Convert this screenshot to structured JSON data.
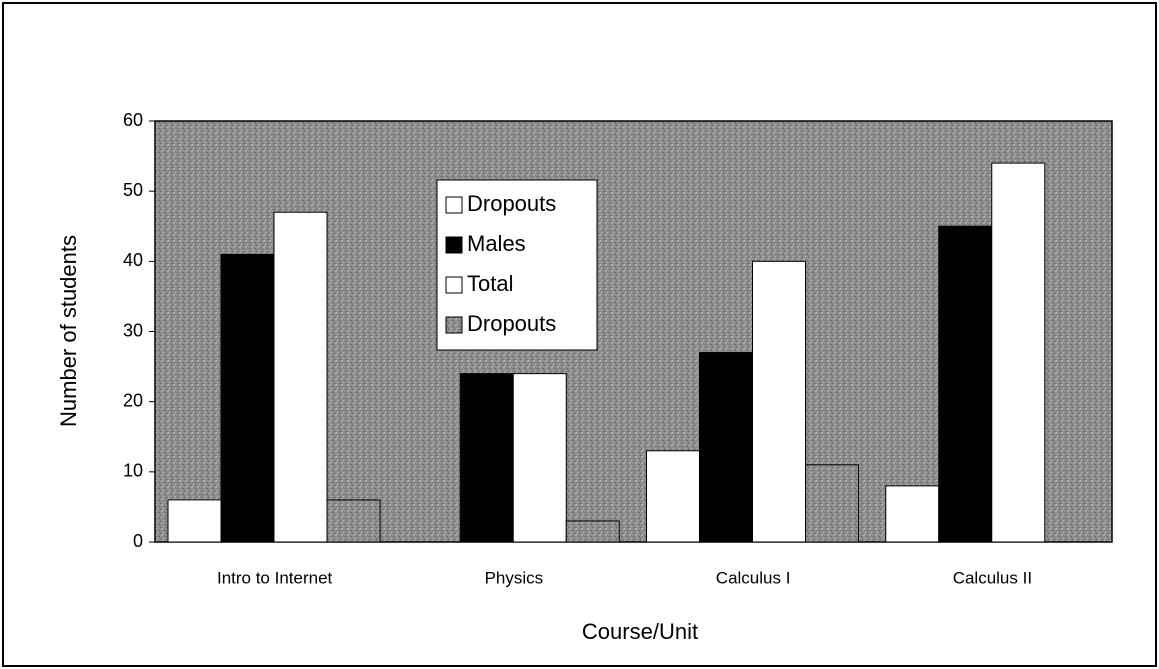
{
  "chart_data": {
    "type": "bar",
    "categories": [
      "Intro to Internet",
      "Physics",
      "Calculus I",
      "Calculus II"
    ],
    "series": [
      {
        "name": "Dropouts",
        "color": "#ffffff",
        "values": [
          6,
          0,
          13,
          8
        ]
      },
      {
        "name": "Males",
        "color": "#000000",
        "values": [
          41,
          24,
          27,
          45
        ]
      },
      {
        "name": "Total",
        "color": "#ffffff",
        "values": [
          47,
          24,
          40,
          54
        ]
      },
      {
        "name": "Dropouts",
        "color": "#9a9a9a",
        "values": [
          6,
          3,
          11,
          0
        ]
      }
    ],
    "x_label": "Course/Unit",
    "y_label": "Number of students",
    "ylim": [
      0,
      60
    ],
    "yticks": [
      0,
      10,
      20,
      30,
      40,
      50,
      60
    ],
    "grid": true
  }
}
